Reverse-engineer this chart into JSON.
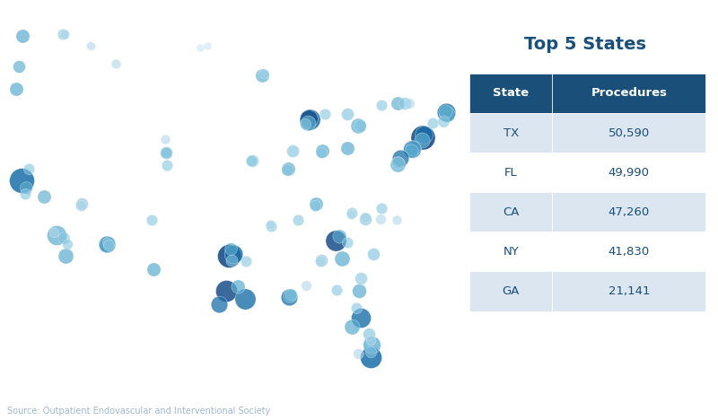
{
  "title": "Top 5 States",
  "source_text": "Source: Outpatient Endovascular and Interventional Society",
  "table_headers": [
    "State",
    "Procedures"
  ],
  "table_data": [
    [
      "TX",
      "50,590"
    ],
    [
      "FL",
      "49,990"
    ],
    [
      "CA",
      "47,260"
    ],
    [
      "NY",
      "41,830"
    ],
    [
      "GA",
      "21,141"
    ]
  ],
  "header_bg": "#1a4f7a",
  "header_fg": "#ffffff",
  "row_bg_odd": "#dce6f0",
  "row_bg_even": "#ffffff",
  "row_fg": "#1a4f7a",
  "title_color": "#1a4f7a",
  "source_color": "#a0b8cc",
  "background_color": "#ffffff",
  "bubbles": [
    {
      "lon": -122.4,
      "lat": 37.8,
      "size": 400,
      "color": "#1a6fa8",
      "alpha": 0.85
    },
    {
      "lon": -118.2,
      "lat": 34.1,
      "size": 250,
      "color": "#5aabcf",
      "alpha": 0.7
    },
    {
      "lon": -117.1,
      "lat": 32.7,
      "size": 150,
      "color": "#5aabcf",
      "alpha": 0.7
    },
    {
      "lon": -119.7,
      "lat": 36.7,
      "size": 120,
      "color": "#5aabcf",
      "alpha": 0.65
    },
    {
      "lon": -121.9,
      "lat": 37.3,
      "size": 100,
      "color": "#5aabcf",
      "alpha": 0.65
    },
    {
      "lon": -122.0,
      "lat": 36.9,
      "size": 80,
      "color": "#85c5df",
      "alpha": 0.6
    },
    {
      "lon": -123.1,
      "lat": 44.0,
      "size": 120,
      "color": "#5aabcf",
      "alpha": 0.7
    },
    {
      "lon": -122.7,
      "lat": 45.5,
      "size": 100,
      "color": "#5aabcf",
      "alpha": 0.65
    },
    {
      "lon": -117.3,
      "lat": 33.9,
      "size": 90,
      "color": "#85c5df",
      "alpha": 0.6
    },
    {
      "lon": -116.9,
      "lat": 33.5,
      "size": 70,
      "color": "#85c5df",
      "alpha": 0.6
    },
    {
      "lon": -121.5,
      "lat": 38.6,
      "size": 80,
      "color": "#85c5df",
      "alpha": 0.6
    },
    {
      "lon": -118.5,
      "lat": 34.3,
      "size": 60,
      "color": "#aad4e8",
      "alpha": 0.6
    },
    {
      "lon": -97.3,
      "lat": 32.7,
      "size": 350,
      "color": "#1a4f8a",
      "alpha": 0.9
    },
    {
      "lon": -96.8,
      "lat": 32.8,
      "size": 220,
      "color": "#1a6fa8",
      "alpha": 0.85
    },
    {
      "lon": -97.7,
      "lat": 30.3,
      "size": 300,
      "color": "#1a4f8a",
      "alpha": 0.85
    },
    {
      "lon": -95.4,
      "lat": 29.8,
      "size": 280,
      "color": "#1a6fa8",
      "alpha": 0.8
    },
    {
      "lon": -98.5,
      "lat": 29.4,
      "size": 180,
      "color": "#1a6fa8",
      "alpha": 0.75
    },
    {
      "lon": -96.3,
      "lat": 30.6,
      "size": 120,
      "color": "#5aabcf",
      "alpha": 0.7
    },
    {
      "lon": -97.1,
      "lat": 33.2,
      "size": 100,
      "color": "#5aabcf",
      "alpha": 0.65
    },
    {
      "lon": -97.0,
      "lat": 32.4,
      "size": 90,
      "color": "#85c5df",
      "alpha": 0.6
    },
    {
      "lon": -95.3,
      "lat": 32.3,
      "size": 80,
      "color": "#85c5df",
      "alpha": 0.6
    },
    {
      "lon": -106.5,
      "lat": 31.8,
      "size": 120,
      "color": "#5aabcf",
      "alpha": 0.7
    },
    {
      "lon": -106.7,
      "lat": 35.1,
      "size": 80,
      "color": "#85c5df",
      "alpha": 0.6
    },
    {
      "lon": -104.8,
      "lat": 38.8,
      "size": 80,
      "color": "#85c5df",
      "alpha": 0.6
    },
    {
      "lon": -104.9,
      "lat": 39.7,
      "size": 100,
      "color": "#5aabcf",
      "alpha": 0.65
    },
    {
      "lon": -80.2,
      "lat": 25.8,
      "size": 300,
      "color": "#1a6fa8",
      "alpha": 0.85
    },
    {
      "lon": -81.4,
      "lat": 28.5,
      "size": 250,
      "color": "#1a6fa8",
      "alpha": 0.8
    },
    {
      "lon": -80.1,
      "lat": 26.7,
      "size": 200,
      "color": "#5aabcf",
      "alpha": 0.75
    },
    {
      "lon": -82.5,
      "lat": 27.9,
      "size": 150,
      "color": "#5aabcf",
      "alpha": 0.7
    },
    {
      "lon": -81.6,
      "lat": 30.3,
      "size": 130,
      "color": "#5aabcf",
      "alpha": 0.7
    },
    {
      "lon": -80.4,
      "lat": 27.4,
      "size": 100,
      "color": "#85c5df",
      "alpha": 0.65
    },
    {
      "lon": -80.2,
      "lat": 26.2,
      "size": 80,
      "color": "#85c5df",
      "alpha": 0.6
    },
    {
      "lon": -81.7,
      "lat": 26.1,
      "size": 70,
      "color": "#aad4e8",
      "alpha": 0.6
    },
    {
      "lon": -80.2,
      "lat": 27.0,
      "size": 60,
      "color": "#aad4e8",
      "alpha": 0.55
    },
    {
      "lon": -81.9,
      "lat": 29.2,
      "size": 80,
      "color": "#85c5df",
      "alpha": 0.6
    },
    {
      "lon": -84.4,
      "lat": 33.7,
      "size": 280,
      "color": "#1a4f8a",
      "alpha": 0.85
    },
    {
      "lon": -83.7,
      "lat": 32.5,
      "size": 150,
      "color": "#5aabcf",
      "alpha": 0.7
    },
    {
      "lon": -84.0,
      "lat": 34.0,
      "size": 120,
      "color": "#5aabcf",
      "alpha": 0.65
    },
    {
      "lon": -81.4,
      "lat": 31.2,
      "size": 100,
      "color": "#85c5df",
      "alpha": 0.6
    },
    {
      "lon": -83.0,
      "lat": 33.6,
      "size": 80,
      "color": "#85c5df",
      "alpha": 0.6
    },
    {
      "lon": -73.9,
      "lat": 40.7,
      "size": 380,
      "color": "#1a4f8a",
      "alpha": 0.9
    },
    {
      "lon": -73.8,
      "lat": 40.9,
      "size": 200,
      "color": "#1a6fa8",
      "alpha": 0.8
    },
    {
      "lon": -74.0,
      "lat": 40.5,
      "size": 150,
      "color": "#5aabcf",
      "alpha": 0.7
    },
    {
      "lon": -77.0,
      "lat": 43.0,
      "size": 120,
      "color": "#5aabcf",
      "alpha": 0.65
    },
    {
      "lon": -76.1,
      "lat": 43.0,
      "size": 100,
      "color": "#85c5df",
      "alpha": 0.6
    },
    {
      "lon": -78.9,
      "lat": 42.9,
      "size": 80,
      "color": "#85c5df",
      "alpha": 0.6
    },
    {
      "lon": -75.5,
      "lat": 43.0,
      "size": 70,
      "color": "#aad4e8",
      "alpha": 0.55
    },
    {
      "lon": -87.6,
      "lat": 41.9,
      "size": 280,
      "color": "#1a6fa8",
      "alpha": 0.85
    },
    {
      "lon": -87.7,
      "lat": 42.0,
      "size": 200,
      "color": "#1a4f8a",
      "alpha": 0.8
    },
    {
      "lon": -87.8,
      "lat": 41.7,
      "size": 150,
      "color": "#5aabcf",
      "alpha": 0.7
    },
    {
      "lon": -89.6,
      "lat": 39.8,
      "size": 100,
      "color": "#85c5df",
      "alpha": 0.65
    },
    {
      "lon": -88.1,
      "lat": 41.6,
      "size": 80,
      "color": "#85c5df",
      "alpha": 0.6
    },
    {
      "lon": -90.2,
      "lat": 38.6,
      "size": 120,
      "color": "#5aabcf",
      "alpha": 0.7
    },
    {
      "lon": -90.3,
      "lat": 38.5,
      "size": 90,
      "color": "#85c5df",
      "alpha": 0.6
    },
    {
      "lon": -90.1,
      "lat": 29.9,
      "size": 180,
      "color": "#1a6fa8",
      "alpha": 0.75
    },
    {
      "lon": -90.0,
      "lat": 30.0,
      "size": 120,
      "color": "#5aabcf",
      "alpha": 0.7
    },
    {
      "lon": -89.9,
      "lat": 30.1,
      "size": 90,
      "color": "#85c5df",
      "alpha": 0.6
    },
    {
      "lon": -86.8,
      "lat": 36.2,
      "size": 120,
      "color": "#5aabcf",
      "alpha": 0.7
    },
    {
      "lon": -86.9,
      "lat": 36.1,
      "size": 80,
      "color": "#85c5df",
      "alpha": 0.6
    },
    {
      "lon": -83.0,
      "lat": 40.0,
      "size": 120,
      "color": "#5aabcf",
      "alpha": 0.7
    },
    {
      "lon": -81.7,
      "lat": 41.5,
      "size": 150,
      "color": "#5aabcf",
      "alpha": 0.7
    },
    {
      "lon": -81.5,
      "lat": 41.5,
      "size": 100,
      "color": "#85c5df",
      "alpha": 0.6
    },
    {
      "lon": -75.2,
      "lat": 39.9,
      "size": 200,
      "color": "#1a6fa8",
      "alpha": 0.8
    },
    {
      "lon": -75.1,
      "lat": 40.0,
      "size": 150,
      "color": "#5aabcf",
      "alpha": 0.7
    },
    {
      "lon": -75.3,
      "lat": 39.8,
      "size": 120,
      "color": "#5aabcf",
      "alpha": 0.65
    },
    {
      "lon": -76.6,
      "lat": 39.3,
      "size": 180,
      "color": "#1a6fa8",
      "alpha": 0.75
    },
    {
      "lon": -77.0,
      "lat": 38.9,
      "size": 150,
      "color": "#5aabcf",
      "alpha": 0.7
    },
    {
      "lon": -76.9,
      "lat": 39.0,
      "size": 100,
      "color": "#85c5df",
      "alpha": 0.6
    },
    {
      "lon": -71.1,
      "lat": 42.4,
      "size": 220,
      "color": "#1a6fa8",
      "alpha": 0.8
    },
    {
      "lon": -71.0,
      "lat": 42.3,
      "size": 160,
      "color": "#5aabcf",
      "alpha": 0.75
    },
    {
      "lon": -71.2,
      "lat": 42.5,
      "size": 120,
      "color": "#5aabcf",
      "alpha": 0.65
    },
    {
      "lon": -71.4,
      "lat": 41.8,
      "size": 90,
      "color": "#85c5df",
      "alpha": 0.6
    },
    {
      "lon": -72.7,
      "lat": 41.7,
      "size": 80,
      "color": "#85c5df",
      "alpha": 0.6
    },
    {
      "lon": -93.3,
      "lat": 44.9,
      "size": 120,
      "color": "#5aabcf",
      "alpha": 0.7
    },
    {
      "lon": -93.2,
      "lat": 44.9,
      "size": 90,
      "color": "#85c5df",
      "alpha": 0.6
    },
    {
      "lon": -93.1,
      "lat": 45.0,
      "size": 70,
      "color": "#aad4e8",
      "alpha": 0.55
    },
    {
      "lon": -94.5,
      "lat": 39.1,
      "size": 100,
      "color": "#85c5df",
      "alpha": 0.65
    },
    {
      "lon": -94.6,
      "lat": 39.1,
      "size": 80,
      "color": "#85c5df",
      "alpha": 0.6
    },
    {
      "lon": -112.1,
      "lat": 33.5,
      "size": 180,
      "color": "#1a6fa8",
      "alpha": 0.75
    },
    {
      "lon": -112.2,
      "lat": 33.4,
      "size": 130,
      "color": "#5aabcf",
      "alpha": 0.7
    },
    {
      "lon": -111.9,
      "lat": 33.6,
      "size": 100,
      "color": "#85c5df",
      "alpha": 0.65
    },
    {
      "lon": -111.9,
      "lat": 33.4,
      "size": 80,
      "color": "#85c5df",
      "alpha": 0.6
    },
    {
      "lon": -115.1,
      "lat": 36.2,
      "size": 100,
      "color": "#85c5df",
      "alpha": 0.65
    },
    {
      "lon": -115.2,
      "lat": 36.1,
      "size": 80,
      "color": "#aad4e8",
      "alpha": 0.6
    },
    {
      "lon": -104.9,
      "lat": 39.7,
      "size": 80,
      "color": "#85c5df",
      "alpha": 0.6
    },
    {
      "lon": -122.3,
      "lat": 47.6,
      "size": 120,
      "color": "#5aabcf",
      "alpha": 0.7
    },
    {
      "lon": -117.4,
      "lat": 47.7,
      "size": 80,
      "color": "#85c5df",
      "alpha": 0.6
    },
    {
      "lon": -117.2,
      "lat": 47.7,
      "size": 60,
      "color": "#aad4e8",
      "alpha": 0.55
    },
    {
      "lon": -111.0,
      "lat": 45.7,
      "size": 60,
      "color": "#aad4e8",
      "alpha": 0.55
    },
    {
      "lon": -114.0,
      "lat": 46.9,
      "size": 50,
      "color": "#aad4e8",
      "alpha": 0.55
    },
    {
      "lon": -105.0,
      "lat": 40.6,
      "size": 60,
      "color": "#aad4e8",
      "alpha": 0.55
    },
    {
      "lon": -100.8,
      "lat": 46.8,
      "size": 40,
      "color": "#c5e3ef",
      "alpha": 0.5
    },
    {
      "lon": -99.9,
      "lat": 46.9,
      "size": 40,
      "color": "#c5e3ef",
      "alpha": 0.5
    },
    {
      "lon": -84.3,
      "lat": 30.4,
      "size": 80,
      "color": "#85c5df",
      "alpha": 0.6
    },
    {
      "lon": -86.2,
      "lat": 32.4,
      "size": 100,
      "color": "#85c5df",
      "alpha": 0.65
    },
    {
      "lon": -86.3,
      "lat": 32.3,
      "size": 80,
      "color": "#aad4e8",
      "alpha": 0.6
    },
    {
      "lon": -88.0,
      "lat": 30.7,
      "size": 70,
      "color": "#aad4e8",
      "alpha": 0.55
    },
    {
      "lon": -92.3,
      "lat": 34.7,
      "size": 80,
      "color": "#85c5df",
      "alpha": 0.6
    },
    {
      "lon": -92.4,
      "lat": 34.8,
      "size": 60,
      "color": "#aad4e8",
      "alpha": 0.55
    },
    {
      "lon": -89.0,
      "lat": 35.1,
      "size": 80,
      "color": "#85c5df",
      "alpha": 0.6
    },
    {
      "lon": -80.9,
      "lat": 35.2,
      "size": 100,
      "color": "#85c5df",
      "alpha": 0.65
    },
    {
      "lon": -78.9,
      "lat": 35.9,
      "size": 80,
      "color": "#85c5df",
      "alpha": 0.6
    },
    {
      "lon": -79.0,
      "lat": 35.2,
      "size": 70,
      "color": "#aad4e8",
      "alpha": 0.55
    },
    {
      "lon": -77.1,
      "lat": 35.1,
      "size": 60,
      "color": "#aad4e8",
      "alpha": 0.55
    },
    {
      "lon": -82.5,
      "lat": 35.6,
      "size": 80,
      "color": "#85c5df",
      "alpha": 0.6
    },
    {
      "lon": -82.6,
      "lat": 35.5,
      "size": 60,
      "color": "#aad4e8",
      "alpha": 0.55
    },
    {
      "lon": -79.9,
      "lat": 32.8,
      "size": 100,
      "color": "#85c5df",
      "alpha": 0.65
    },
    {
      "lon": -80.9,
      "lat": 35.3,
      "size": 70,
      "color": "#aad4e8",
      "alpha": 0.55
    },
    {
      "lon": -86.1,
      "lat": 39.8,
      "size": 120,
      "color": "#5aabcf",
      "alpha": 0.7
    },
    {
      "lon": -86.2,
      "lat": 39.7,
      "size": 80,
      "color": "#85c5df",
      "alpha": 0.6
    },
    {
      "lon": -85.7,
      "lat": 42.3,
      "size": 80,
      "color": "#85c5df",
      "alpha": 0.6
    },
    {
      "lon": -83.0,
      "lat": 42.3,
      "size": 100,
      "color": "#85c5df",
      "alpha": 0.65
    },
    {
      "lon": -157.8,
      "lat": 21.3,
      "size": 60,
      "color": "#5aabcf",
      "alpha": 0.65
    },
    {
      "lon": -158.0,
      "lat": 21.4,
      "size": 50,
      "color": "#85c5df",
      "alpha": 0.6
    },
    {
      "lon": -149.9,
      "lat": 61.2,
      "size": 50,
      "color": "#85c5df",
      "alpha": 0.55
    }
  ]
}
